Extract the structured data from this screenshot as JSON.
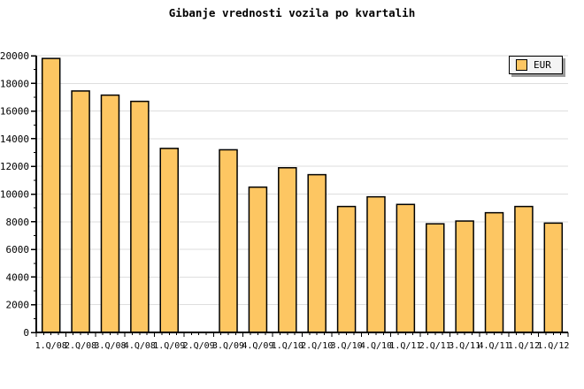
{
  "chart_data": {
    "type": "bar",
    "title": "Gibanje vrednosti vozila po kvartalih",
    "legend": [
      "EUR"
    ],
    "legend_position": "top-right",
    "categories": [
      "1.Q/08",
      "2.Q/08",
      "3.Q/08",
      "4.Q/08",
      "1.Q/09",
      "2.Q/09",
      "3.Q/09",
      "4.Q/09",
      "1.Q/10",
      "2.Q/10",
      "3.Q/10",
      "4.Q/10",
      "1.Q/11",
      "2.Q/11",
      "3.Q/11",
      "4.Q/11",
      "1.Q/12",
      "1.Q/12"
    ],
    "values": [
      19800,
      17450,
      17150,
      16700,
      13300,
      null,
      13200,
      10500,
      11900,
      11400,
      9100,
      9800,
      9250,
      7850,
      8050,
      8650,
      9100,
      7900
    ],
    "xlabel": "",
    "ylabel": "",
    "ylim": [
      0,
      20000
    ],
    "yticks": [
      0,
      2000,
      4000,
      6000,
      8000,
      10000,
      12000,
      14000,
      16000,
      18000,
      20000
    ],
    "y_minor_step": 1000,
    "grid": "horizontal-major",
    "colors": {
      "bar_fill": "#FDC662",
      "bar_border": "#000000",
      "grid": "#DEDEDE",
      "axis": "#000000",
      "text": "#000000",
      "legend_bg": "#F4F4F4",
      "legend_shadow": "#999999",
      "background": "#FFFFFF"
    }
  }
}
